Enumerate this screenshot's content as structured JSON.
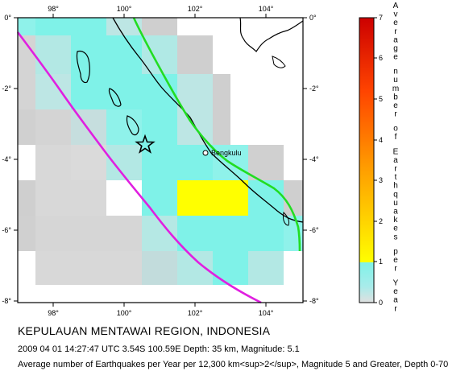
{
  "map": {
    "lon_ticks": [
      "98°",
      "100°",
      "102°",
      "104°"
    ],
    "lat_ticks": [
      "0°",
      "-2°",
      "-4°",
      "-6°",
      "-8°"
    ],
    "city_label": "Bengkulu",
    "colors": {
      "frame": "#000000",
      "grid_gray": "#cfcfcf",
      "cell_cyan": "#7ff2e8",
      "cell_yellow": "#ffff00",
      "fault_green": "#22dd22",
      "trench_magenta": "#e020e0",
      "coast": "#000000"
    },
    "epicenter": {
      "lon": 100.59,
      "lat": -3.54,
      "symbol": "star-icon"
    }
  },
  "legend": {
    "title_vertical": "Average number of Earthquakes per Year",
    "ticks": [
      "0",
      "1",
      "2",
      "3",
      "4",
      "5",
      "6",
      "7"
    ],
    "stops": [
      "#7ff2e8",
      "#ffff00",
      "#ff9900",
      "#ff4400",
      "#cc0000"
    ]
  },
  "caption": {
    "title": "KEPULAUAN MENTAWAI REGION, INDONESIA",
    "event": "2009 04 01 14:27:47 UTC 3.54S 100.59E Depth: 35 km, Magnitude: 5.1",
    "note": "Average number of Earthquakes per Year per 12,300 km<sup>2</sup>, Magnitude 5 and Greater, Depth 0-70"
  }
}
